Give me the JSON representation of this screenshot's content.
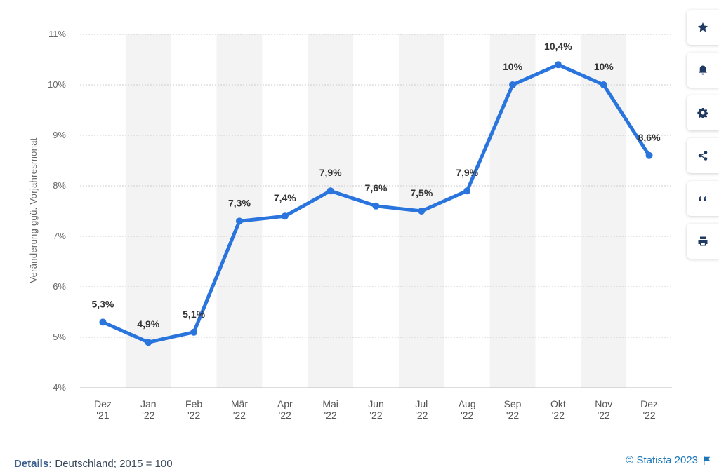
{
  "chart_data": {
    "type": "line",
    "title": "",
    "xlabel": "",
    "ylabel": "Veränderung ggü. Vorjahresmonat",
    "ylim": [
      4,
      11
    ],
    "y_ticks": [
      "4%",
      "5%",
      "6%",
      "7%",
      "8%",
      "9%",
      "10%",
      "11%"
    ],
    "grid": true,
    "categories": [
      [
        "Dez",
        "'21"
      ],
      [
        "Jan",
        "'22"
      ],
      [
        "Feb",
        "'22"
      ],
      [
        "Mär",
        "'22"
      ],
      [
        "Apr",
        "'22"
      ],
      [
        "Mai",
        "'22"
      ],
      [
        "Jun",
        "'22"
      ],
      [
        "Jul",
        "'22"
      ],
      [
        "Aug",
        "'22"
      ],
      [
        "Sep",
        "'22"
      ],
      [
        "Okt",
        "'22"
      ],
      [
        "Nov",
        "'22"
      ],
      [
        "Dez",
        "'22"
      ]
    ],
    "series": [
      {
        "values": [
          5.3,
          4.9,
          5.1,
          7.3,
          7.4,
          7.9,
          7.6,
          7.5,
          7.9,
          10,
          10.4,
          10,
          8.6
        ],
        "labels": [
          "5,3%",
          "4,9%",
          "5,1%",
          "7,3%",
          "7,4%",
          "7,9%",
          "7,6%",
          "7,5%",
          "7,9%",
          "10%",
          "10,4%",
          "10%",
          "8,6%"
        ],
        "color": "#2a74de"
      }
    ]
  },
  "toolbar": {
    "buttons": [
      {
        "name": "favorite-button",
        "icon": "star-icon"
      },
      {
        "name": "notification-button",
        "icon": "bell-icon"
      },
      {
        "name": "settings-button",
        "icon": "gear-icon"
      },
      {
        "name": "share-button",
        "icon": "share-icon"
      },
      {
        "name": "cite-button",
        "icon": "quote-icon"
      },
      {
        "name": "print-button",
        "icon": "print-icon"
      }
    ]
  },
  "footer": {
    "details_key": "Details:",
    "details_value": "Deutschland; 2015 = 100",
    "source": "© Statista 2023"
  }
}
